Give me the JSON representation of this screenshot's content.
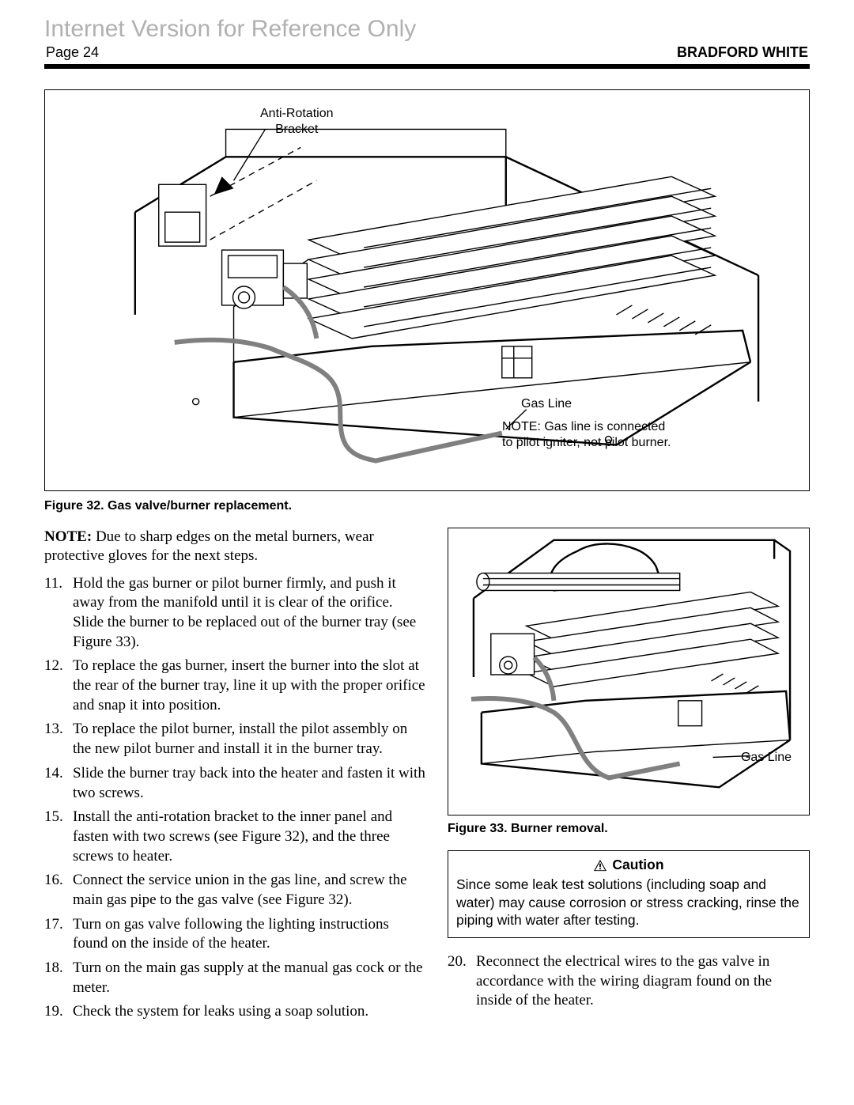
{
  "watermark": "Internet Version for Reference Only",
  "header": {
    "page_label": "Page 24",
    "brand": "BRADFORD WHITE"
  },
  "figure32": {
    "caption": "Figure 32.  Gas valve/burner replacement.",
    "labels": {
      "anti_rotation": "Anti-Rotation\nBracket",
      "gas_line": "Gas Line",
      "note": "NOTE: Gas line is connected\nto pilot igniter, not pilot burner."
    }
  },
  "note": {
    "bold": "NOTE:",
    "text": " Due to sharp edges on the metal burners, wear protective gloves for the next steps."
  },
  "steps_left": [
    {
      "n": "11.",
      "t": "Hold the gas burner or pilot burner firmly, and push it away from the manifold until it is clear of the orifice. Slide the burner to be replaced out of the burner tray (see Figure 33)."
    },
    {
      "n": "12.",
      "t": "To replace the gas burner, insert the burner into the slot at the rear of the burner tray, line it up with the proper orifice and snap it into position."
    },
    {
      "n": "13.",
      "t": "To replace the pilot burner, install the pilot assembly on the new pilot burner and install it in the burner tray."
    },
    {
      "n": "14.",
      "t": "Slide the burner tray back into the heater and fasten it with two screws."
    },
    {
      "n": "15.",
      "t": "Install the anti-rotation bracket to the inner panel and fasten with two screws (see Figure 32), and the three screws to heater."
    },
    {
      "n": "16.",
      "t": "Connect the service union in the gas line, and screw the main gas pipe to the gas valve (see Figure 32)."
    },
    {
      "n": "17.",
      "t": "Turn on gas valve following the lighting instructions found on the inside of the heater."
    },
    {
      "n": "18.",
      "t": "Turn on the main gas supply at the manual gas cock or the meter."
    },
    {
      "n": "19.",
      "t": "Check the system for leaks using a soap solution."
    }
  ],
  "figure33": {
    "caption": "Figure 33.  Burner removal.",
    "labels": {
      "gas_line": "Gas Line"
    }
  },
  "caution": {
    "title": "Caution",
    "body": "Since some leak test solutions (including soap and water) may cause corrosion or stress cracking, rinse the piping with water after testing."
  },
  "steps_right": [
    {
      "n": "20.",
      "t": "Reconnect the electrical wires to the gas valve in accordance with the wiring diagram found on the inside of the heater."
    }
  ]
}
